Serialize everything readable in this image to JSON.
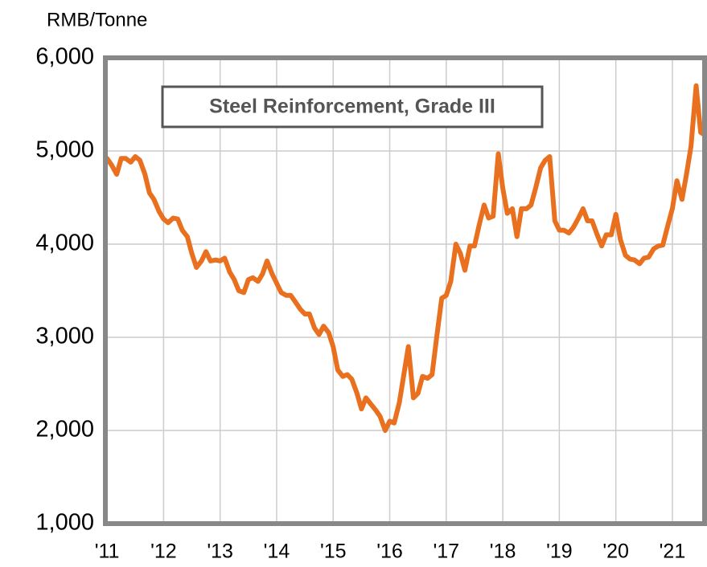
{
  "chart_data": {
    "type": "line",
    "title": "Steel Reinforcement, Grade III",
    "y_label": "RMB/Tonne",
    "xlim": [
      2010.97,
      2021.57
    ],
    "ylim": [
      1000,
      6000
    ],
    "xticks": [
      {
        "value": 2011,
        "label": "'11"
      },
      {
        "value": 2012,
        "label": "'12"
      },
      {
        "value": 2013,
        "label": "'13"
      },
      {
        "value": 2014,
        "label": "'14"
      },
      {
        "value": 2015,
        "label": "'15"
      },
      {
        "value": 2016,
        "label": "'16"
      },
      {
        "value": 2017,
        "label": "'17"
      },
      {
        "value": 2018,
        "label": "'18"
      },
      {
        "value": 2019,
        "label": "'19"
      },
      {
        "value": 2020,
        "label": "'20"
      },
      {
        "value": 2021,
        "label": "'21"
      }
    ],
    "yticks": [
      {
        "value": 1000,
        "label": "1,000"
      },
      {
        "value": 2000,
        "label": "2,000"
      },
      {
        "value": 3000,
        "label": "3,000"
      },
      {
        "value": 4000,
        "label": "4,000"
      },
      {
        "value": 5000,
        "label": "5,000"
      },
      {
        "value": 6000,
        "label": "6,000"
      }
    ],
    "grid": true,
    "x": [
      2011.0,
      2011.08,
      2011.17,
      2011.25,
      2011.33,
      2011.42,
      2011.5,
      2011.58,
      2011.67,
      2011.75,
      2011.83,
      2011.92,
      2012.0,
      2012.08,
      2012.17,
      2012.25,
      2012.33,
      2012.42,
      2012.5,
      2012.58,
      2012.67,
      2012.75,
      2012.83,
      2012.92,
      2013.0,
      2013.08,
      2013.17,
      2013.25,
      2013.33,
      2013.42,
      2013.5,
      2013.58,
      2013.67,
      2013.75,
      2013.83,
      2013.92,
      2014.0,
      2014.08,
      2014.17,
      2014.25,
      2014.33,
      2014.42,
      2014.5,
      2014.58,
      2014.67,
      2014.75,
      2014.83,
      2014.92,
      2015.0,
      2015.08,
      2015.17,
      2015.25,
      2015.33,
      2015.42,
      2015.5,
      2015.58,
      2015.67,
      2015.75,
      2015.83,
      2015.92,
      2016.0,
      2016.08,
      2016.17,
      2016.25,
      2016.33,
      2016.42,
      2016.5,
      2016.58,
      2016.67,
      2016.75,
      2016.83,
      2016.92,
      2017.0,
      2017.08,
      2017.17,
      2017.25,
      2017.33,
      2017.42,
      2017.5,
      2017.58,
      2017.67,
      2017.75,
      2017.83,
      2017.92,
      2018.0,
      2018.08,
      2018.17,
      2018.25,
      2018.33,
      2018.42,
      2018.5,
      2018.58,
      2018.67,
      2018.75,
      2018.83,
      2018.92,
      2019.0,
      2019.08,
      2019.17,
      2019.25,
      2019.33,
      2019.42,
      2019.5,
      2019.58,
      2019.67,
      2019.75,
      2019.83,
      2019.92,
      2020.0,
      2020.08,
      2020.17,
      2020.25,
      2020.33,
      2020.42,
      2020.5,
      2020.58,
      2020.67,
      2020.75,
      2020.83,
      2020.92,
      2021.0,
      2021.08,
      2021.17,
      2021.25,
      2021.33,
      2021.42,
      2021.5,
      2021.58
    ],
    "series": [
      {
        "name": "Steel Reinforcement, Grade III",
        "color": "#e8701e",
        "values": [
          4920,
          4850,
          4750,
          4920,
          4920,
          4880,
          4940,
          4900,
          4750,
          4550,
          4480,
          4350,
          4270,
          4230,
          4280,
          4270,
          4150,
          4080,
          3900,
          3750,
          3820,
          3920,
          3820,
          3830,
          3820,
          3850,
          3700,
          3620,
          3500,
          3480,
          3620,
          3640,
          3600,
          3680,
          3820,
          3680,
          3580,
          3480,
          3450,
          3450,
          3380,
          3300,
          3250,
          3250,
          3100,
          3030,
          3120,
          3050,
          2900,
          2650,
          2580,
          2600,
          2550,
          2400,
          2230,
          2350,
          2280,
          2220,
          2150,
          2000,
          2100,
          2080,
          2300,
          2600,
          2900,
          2350,
          2400,
          2580,
          2560,
          2600,
          3000,
          3420,
          3450,
          3600,
          4000,
          3900,
          3720,
          3980,
          3980,
          4200,
          4420,
          4280,
          4300,
          4970,
          4600,
          4330,
          4380,
          4080,
          4380,
          4380,
          4420,
          4600,
          4820,
          4900,
          4940,
          4250,
          4150,
          4150,
          4120,
          4180,
          4270,
          4380,
          4250,
          4250,
          4100,
          3980,
          4100,
          4100,
          4320,
          4050,
          3880,
          3840,
          3830,
          3790,
          3850,
          3860,
          3950,
          3980,
          3990,
          4200,
          4380,
          4680,
          4480,
          4750,
          5050,
          5700,
          5200,
          5170
        ]
      }
    ]
  }
}
